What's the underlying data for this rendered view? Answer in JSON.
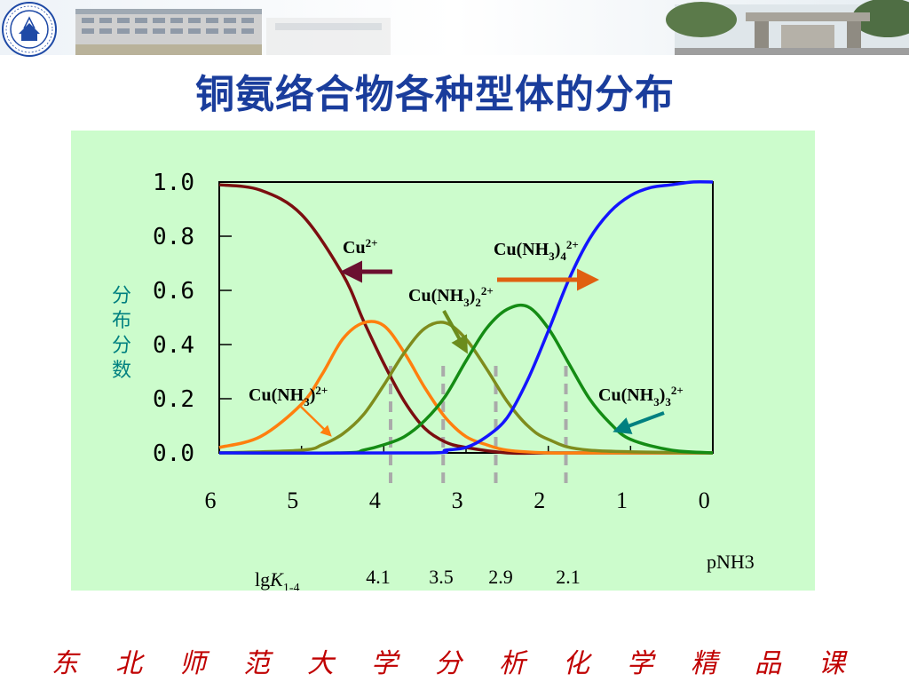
{
  "slide": {
    "title": "铜氨络合物各种型体的分布",
    "footer_chars": [
      "东",
      "北",
      "师",
      "范",
      "大",
      "学",
      "分",
      "析",
      "化",
      "学",
      "精",
      "品",
      "课"
    ]
  },
  "colors": {
    "title": "#1a3d9c",
    "panel": "#ccfccc",
    "footer": "#c00000",
    "cu": "#7b0e10",
    "cunh3": "#ff7f0e",
    "cunh3_2": "#7f8c1d",
    "cunh3_3": "#148c14",
    "cunh3_4": "#1414ff",
    "guide": "#aaaaaa"
  },
  "chart_data": {
    "type": "line",
    "xlabel": "pNH3",
    "ylabel": "分布分数",
    "xlim": [
      6,
      0
    ],
    "ylim": [
      0,
      1
    ],
    "x_ticks": [
      "6",
      "5",
      "4",
      "3",
      "2",
      "1",
      "0"
    ],
    "y_ticks": [
      "1.0",
      "0.8",
      "0.6",
      "0.4",
      "0.2",
      "0.0"
    ],
    "series": [
      {
        "key": "cu",
        "name": "Cu2+",
        "x": [
          6.0,
          5.5,
          5.0,
          4.5,
          4.25,
          4.0,
          3.75,
          3.5,
          3.25,
          3.0,
          2.5,
          2.0,
          1.0,
          0.0
        ],
        "y": [
          0.99,
          0.97,
          0.88,
          0.66,
          0.49,
          0.33,
          0.19,
          0.09,
          0.04,
          0.02,
          0.0,
          0.0,
          0.0,
          0.0
        ]
      },
      {
        "key": "cunh3",
        "name": "Cu(NH3)2+",
        "x": [
          6.0,
          5.5,
          5.0,
          4.75,
          4.5,
          4.25,
          4.0,
          3.75,
          3.5,
          3.25,
          3.0,
          2.75,
          2.5,
          2.0,
          1.5,
          0.0
        ],
        "y": [
          0.02,
          0.06,
          0.18,
          0.29,
          0.42,
          0.48,
          0.47,
          0.37,
          0.24,
          0.13,
          0.06,
          0.03,
          0.01,
          0.0,
          0.0,
          0.0
        ]
      },
      {
        "key": "cunh3_2",
        "name": "Cu(NH3)22+",
        "x": [
          6.0,
          5.0,
          4.75,
          4.5,
          4.25,
          4.0,
          3.75,
          3.5,
          3.25,
          3.0,
          2.75,
          2.5,
          2.25,
          2.0,
          1.5,
          0.0
        ],
        "y": [
          0.0,
          0.01,
          0.03,
          0.07,
          0.14,
          0.25,
          0.37,
          0.46,
          0.48,
          0.42,
          0.31,
          0.19,
          0.1,
          0.05,
          0.01,
          0.0
        ]
      },
      {
        "key": "cunh3_3",
        "name": "Cu(NH3)32+",
        "x": [
          6.0,
          4.5,
          4.25,
          4.0,
          3.75,
          3.5,
          3.25,
          3.0,
          2.75,
          2.5,
          2.25,
          2.0,
          1.75,
          1.5,
          1.25,
          1.0,
          0.5,
          0.0
        ],
        "y": [
          0.0,
          0.0,
          0.01,
          0.03,
          0.06,
          0.12,
          0.21,
          0.34,
          0.46,
          0.53,
          0.54,
          0.46,
          0.33,
          0.2,
          0.11,
          0.05,
          0.01,
          0.0
        ]
      },
      {
        "key": "cunh3_4",
        "name": "Cu(NH3)42+",
        "x": [
          6.0,
          3.5,
          3.25,
          3.0,
          2.75,
          2.5,
          2.25,
          2.0,
          1.75,
          1.5,
          1.25,
          1.0,
          0.75,
          0.5,
          0.25,
          0.0
        ],
        "y": [
          0.0,
          0.0,
          0.01,
          0.02,
          0.06,
          0.13,
          0.27,
          0.45,
          0.64,
          0.79,
          0.89,
          0.95,
          0.98,
          0.99,
          1.0,
          1.0
        ]
      }
    ],
    "labels": {
      "cu": "Cu",
      "cu_sup": "2+",
      "cunh3_main": "Cu(NH",
      "cunh3_sub": "3",
      "cunh3_close": ")",
      "cunh3_sup": "2+",
      "cunh3_2_main": "Cu(NH",
      "cunh3_2_sub": "3",
      "cunh3_2_close": ")",
      "cunh3_2_sub2": "2",
      "cunh3_2_sup": "2+",
      "cunh3_3_main": "Cu(NH",
      "cunh3_3_sub": "3",
      "cunh3_3_close": ")",
      "cunh3_3_sub2": "3",
      "cunh3_3_sup": "2+",
      "cunh3_4_main": "Cu(NH",
      "cunh3_4_sub": "3",
      "cunh3_4_close": ")",
      "cunh3_4_sub2": "4",
      "cunh3_4_sup": "2+"
    },
    "guide_lines_x": [
      4.1,
      3.5,
      2.9,
      2.1
    ],
    "lgk": {
      "label_main": "lg",
      "label_k": "K",
      "label_sub": "1-4",
      "values": [
        "4.1",
        "3.5",
        "2.9",
        "2.1"
      ]
    }
  }
}
